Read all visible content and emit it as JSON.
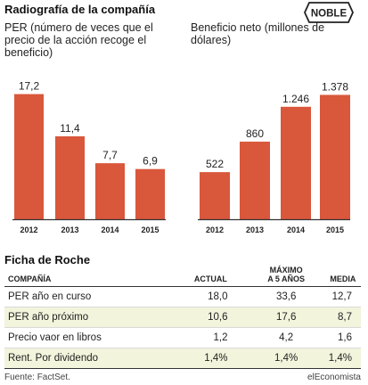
{
  "title": "Radiografía de la compañía",
  "logo_text": "NOBLE",
  "colors": {
    "bar": "#d9573b",
    "axis": "#333333",
    "shade": "#f2f4dc"
  },
  "chart_data": [
    {
      "type": "bar",
      "title": "PER (número de veces que el precio de la acción recoge el beneficio)",
      "categories": [
        "2012",
        "2013",
        "2014",
        "2015"
      ],
      "values": [
        17.2,
        11.4,
        7.7,
        6.9
      ],
      "labels": [
        "17,2",
        "11,4",
        "7,7",
        "6,9"
      ],
      "ylim": [
        0,
        19.6
      ],
      "grid": false
    },
    {
      "type": "bar",
      "title": "Beneficio neto (millones de dólares)",
      "categories": [
        "2012",
        "2013",
        "2014",
        "2015"
      ],
      "values": [
        522,
        860,
        1246,
        1378
      ],
      "labels": [
        "522",
        "860",
        "1.246",
        "1.378"
      ],
      "ylim": [
        0,
        1580
      ],
      "grid": false
    }
  ],
  "ficha": {
    "title": "Ficha de Roche",
    "headers": [
      "COMPAÑÍA",
      "ACTUAL",
      "MÁXIMO a 5 AÑOS",
      "MEDIA"
    ],
    "rows": [
      [
        "PER año en curso",
        "18,0",
        "33,6",
        "12,7"
      ],
      [
        "PER año próximo",
        "10,6",
        "17,6",
        "8,7"
      ],
      [
        "Precio vaor en libros",
        "1,2",
        "4,2",
        "1,6"
      ],
      [
        "Rent. Por dividendo",
        "1,4%",
        "1,4%",
        "1,4%"
      ]
    ]
  },
  "source": "Fuente: FactSet.",
  "brand": "elEconomista"
}
